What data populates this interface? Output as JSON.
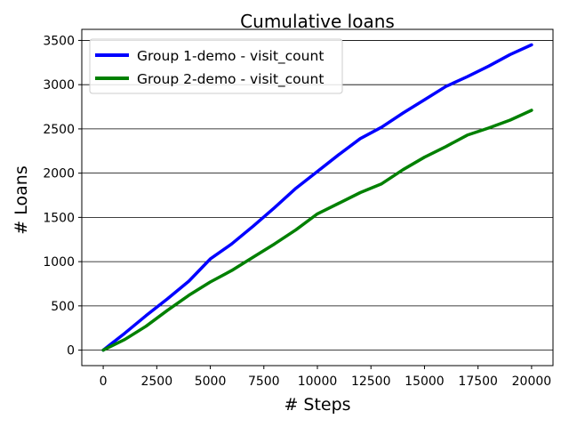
{
  "chart_data": {
    "type": "line",
    "title": "Cumulative loans",
    "xlabel": "# Steps",
    "ylabel": "# Loans",
    "xlim": [
      -1000,
      21000
    ],
    "ylim": [
      -175,
      3625
    ],
    "xticks": [
      0,
      2500,
      5000,
      7500,
      10000,
      12500,
      15000,
      17500,
      20000
    ],
    "yticks": [
      0,
      500,
      1000,
      1500,
      2000,
      2500,
      3000,
      3500
    ],
    "grid": "y-major",
    "legend": "top-left",
    "series": [
      {
        "name": "Group 1-demo - visit_count",
        "color": "#0000ff",
        "x": [
          0,
          1000,
          2000,
          3000,
          4000,
          5000,
          6000,
          7000,
          8000,
          9000,
          10000,
          11000,
          12000,
          13000,
          14000,
          15000,
          16000,
          17000,
          18000,
          19000,
          20000
        ],
        "y": [
          0,
          190,
          390,
          580,
          780,
          1030,
          1200,
          1400,
          1610,
          1830,
          2020,
          2210,
          2390,
          2520,
          2680,
          2830,
          2980,
          3090,
          3210,
          3340,
          3450
        ]
      },
      {
        "name": "Group 2-demo - visit_count",
        "color": "#008000",
        "x": [
          0,
          1000,
          2000,
          3000,
          4000,
          5000,
          6000,
          7000,
          8000,
          9000,
          10000,
          11000,
          12000,
          13000,
          14000,
          15000,
          16000,
          17000,
          18000,
          19000,
          20000
        ],
        "y": [
          0,
          120,
          270,
          450,
          620,
          770,
          900,
          1050,
          1200,
          1360,
          1540,
          1660,
          1780,
          1880,
          2040,
          2180,
          2300,
          2430,
          2510,
          2600,
          2710
        ]
      }
    ]
  }
}
